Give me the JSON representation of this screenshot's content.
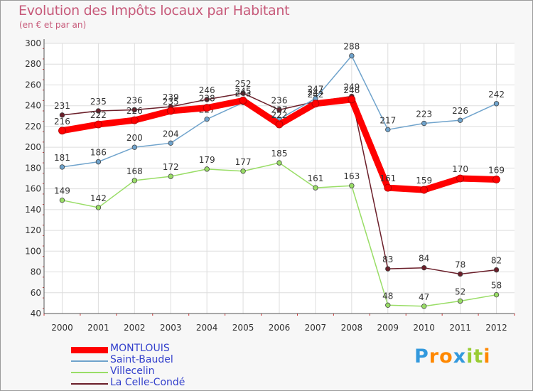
{
  "chart_data": {
    "type": "line",
    "title": "Evolution des Impôts locaux par Habitant",
    "subtitle": "(en € et par an)",
    "xlabel": "",
    "ylabel": "",
    "categories": [
      "2000",
      "2001",
      "2002",
      "2003",
      "2004",
      "2005",
      "2006",
      "2007",
      "2008",
      "2009",
      "2010",
      "2011",
      "2012"
    ],
    "ylim": [
      40,
      300
    ],
    "yticks": [
      40,
      60,
      80,
      100,
      120,
      140,
      160,
      180,
      200,
      220,
      240,
      260,
      280,
      300
    ],
    "grid": true,
    "series": [
      {
        "name": "La Celle-Condé",
        "color": "#6b1f2a",
        "values": [
          231,
          235,
          236,
          239,
          246,
          252,
          236,
          244,
          249,
          83,
          84,
          78,
          82
        ]
      },
      {
        "name": "Villecelin",
        "color": "#99dd66",
        "values": [
          149,
          142,
          168,
          172,
          179,
          177,
          185,
          161,
          163,
          48,
          47,
          52,
          58
        ]
      },
      {
        "name": "Saint-Baudel",
        "color": "#6fa3cc",
        "values": [
          181,
          186,
          200,
          204,
          227,
          243,
          227,
          247,
          288,
          217,
          223,
          226,
          242
        ]
      },
      {
        "name": "MONTLOUIS",
        "color": "#ff0000",
        "values": [
          216,
          222,
          226,
          235,
          238,
          245,
          222,
          242,
          246,
          161,
          159,
          170,
          169
        ]
      }
    ]
  },
  "legend": {
    "items": [
      {
        "label": "MONTLOUIS",
        "color": "#ff0000"
      },
      {
        "label": "Saint-Baudel",
        "color": "#6fa3cc"
      },
      {
        "label": "Villecelin",
        "color": "#99dd66"
      },
      {
        "label": "La Celle-Condé",
        "color": "#6b1f2a"
      }
    ]
  },
  "logo": {
    "letters": [
      "P",
      "r",
      "o",
      "x",
      "i",
      "t",
      "i"
    ],
    "colors": [
      "#3399dd",
      "#ff8800",
      "#ff8800",
      "#3399dd",
      "#99cc33",
      "#99cc33",
      "#ff8800"
    ]
  }
}
